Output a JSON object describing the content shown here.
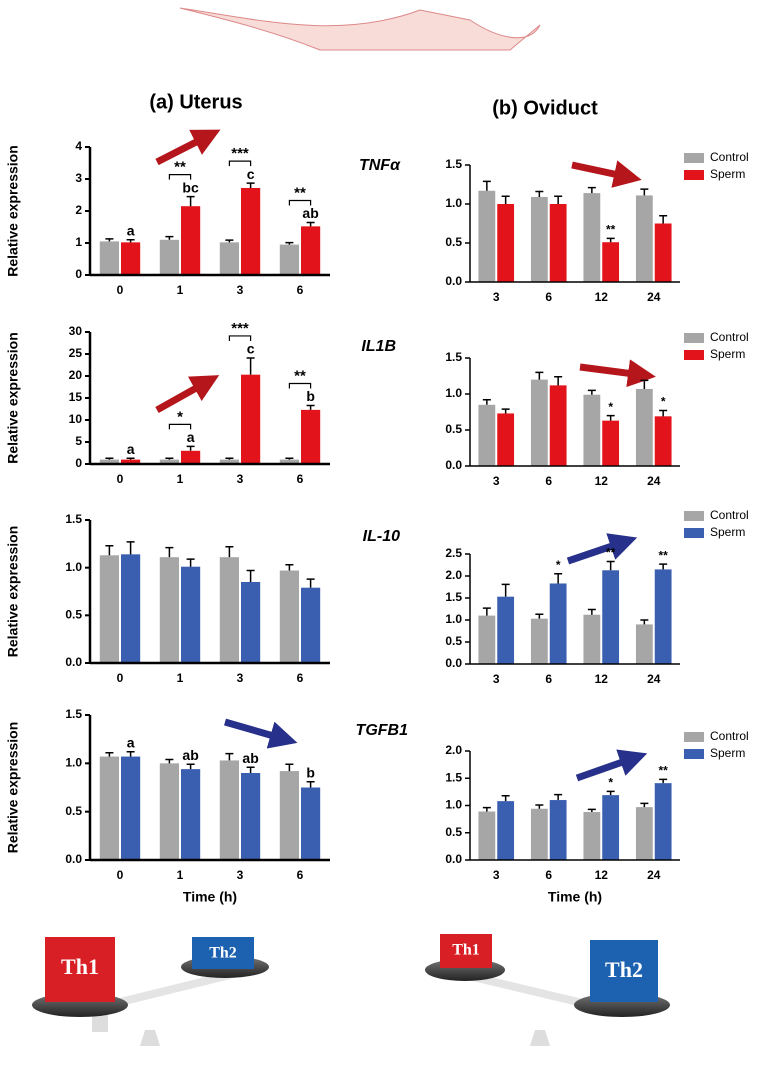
{
  "headings": [
    "(a) Uterus",
    "(b) Oviduct"
  ],
  "genes": [
    "TNFα",
    "IL1B",
    "IL-10",
    "TGFB1"
  ],
  "balance": {
    "left": [
      "Th1",
      "Th2"
    ],
    "right": [
      "Th1",
      "Th2"
    ]
  },
  "chart_data": [
    {
      "type": "bar",
      "ylabel": "Relative expression",
      "categories": [
        "0",
        "1",
        "3",
        "6"
      ],
      "ylim": [
        0,
        4
      ],
      "yticks": [
        0,
        1,
        2,
        3,
        4
      ],
      "series": [
        {
          "color": "#a6a6a6",
          "values": [
            1.05,
            1.1,
            1.02,
            0.95
          ],
          "errors": [
            0.08,
            0.1,
            0.07,
            0.06
          ]
        },
        {
          "color": "#e3131b",
          "values": [
            1.02,
            2.15,
            2.72,
            1.52
          ],
          "errors": [
            0.08,
            0.3,
            0.15,
            0.12
          ],
          "labels": [
            "a",
            "bc",
            "c",
            "ab"
          ]
        }
      ],
      "brackets": [
        null,
        "**",
        "***",
        "**"
      ]
    },
    {
      "type": "bar",
      "categories": [
        "3",
        "6",
        "12",
        "24"
      ],
      "ylim": [
        0,
        1.5
      ],
      "yticks": [
        {
          "value": 0,
          "label": "0.0"
        },
        0.5,
        {
          "value": 1,
          "label": "1.0"
        },
        1.5
      ],
      "series": [
        {
          "name": "Control",
          "color": "#a6a6a6",
          "values": [
            1.17,
            1.09,
            1.14,
            1.11
          ],
          "errors": [
            0.12,
            0.07,
            0.07,
            0.08
          ]
        },
        {
          "name": "Sperm",
          "color": "#e3131b",
          "values": [
            1.0,
            1.0,
            0.51,
            0.75
          ],
          "errors": [
            0.1,
            0.1,
            0.05,
            0.1
          ],
          "labels": [
            null,
            null,
            "**",
            null
          ]
        }
      ]
    },
    {
      "type": "bar",
      "ylabel": "Relative expression",
      "categories": [
        "0",
        "1",
        "3",
        "6"
      ],
      "ylim": [
        0,
        30
      ],
      "yticks": [
        0,
        5,
        10,
        15,
        20,
        25,
        30
      ],
      "series": [
        {
          "color": "#a6a6a6",
          "values": [
            1,
            1,
            1,
            1
          ],
          "errors": [
            0.3,
            0.3,
            0.3,
            0.3
          ]
        },
        {
          "color": "#e3131b",
          "values": [
            1,
            3,
            20.3,
            12.3
          ],
          "errors": [
            0.3,
            1,
            3.8,
            1
          ],
          "labels": [
            "a",
            "a",
            "c",
            "b"
          ]
        }
      ],
      "brackets": [
        null,
        "*",
        "***",
        "**"
      ]
    },
    {
      "type": "bar",
      "categories": [
        "3",
        "6",
        "12",
        "24"
      ],
      "ylim": [
        0,
        1.5
      ],
      "yticks": [
        {
          "value": 0,
          "label": "0.0"
        },
        0.5,
        {
          "value": 1,
          "label": "1.0"
        },
        1.5
      ],
      "series": [
        {
          "name": "Control",
          "color": "#a6a6a6",
          "values": [
            0.85,
            1.2,
            0.99,
            1.07
          ],
          "errors": [
            0.07,
            0.1,
            0.06,
            0.12
          ]
        },
        {
          "name": "Sperm",
          "color": "#e3131b",
          "values": [
            0.73,
            1.12,
            0.63,
            0.69
          ],
          "errors": [
            0.06,
            0.12,
            0.07,
            0.08
          ],
          "labels": [
            null,
            null,
            "*",
            "*"
          ]
        }
      ]
    },
    {
      "type": "bar",
      "ylabel": "Relative expression",
      "categories": [
        "0",
        "1",
        "3",
        "6"
      ],
      "ylim": [
        0,
        1.5
      ],
      "yticks": [
        {
          "value": 0,
          "label": "0.0"
        },
        0.5,
        {
          "value": 1,
          "label": "1.0"
        },
        1.5
      ],
      "series": [
        {
          "color": "#a6a6a6",
          "values": [
            1.13,
            1.11,
            1.11,
            0.97
          ],
          "errors": [
            0.1,
            0.1,
            0.11,
            0.06
          ]
        },
        {
          "color": "#3a5fb0",
          "values": [
            1.14,
            1.01,
            0.85,
            0.79
          ],
          "errors": [
            0.13,
            0.08,
            0.12,
            0.09
          ]
        }
      ]
    },
    {
      "type": "bar",
      "categories": [
        "3",
        "6",
        "12",
        "24"
      ],
      "ylim": [
        0,
        2.5
      ],
      "yticks": [
        {
          "value": 0,
          "label": "0.0"
        },
        0.5,
        {
          "value": 1,
          "label": "1.0"
        },
        1.5,
        {
          "value": 2,
          "label": "2.0"
        },
        2.5
      ],
      "series": [
        {
          "name": "Control",
          "color": "#a6a6a6",
          "values": [
            1.1,
            1.03,
            1.12,
            0.9
          ],
          "errors": [
            0.17,
            0.1,
            0.12,
            0.1
          ]
        },
        {
          "name": "Sperm",
          "color": "#3a5fb0",
          "values": [
            1.53,
            1.83,
            2.13,
            2.15
          ],
          "errors": [
            0.28,
            0.22,
            0.2,
            0.12
          ],
          "labels": [
            null,
            "*",
            "**",
            "**"
          ]
        }
      ]
    },
    {
      "type": "bar",
      "ylabel": "Relative expression",
      "xlabel": "Time (h)",
      "categories": [
        "0",
        "1",
        "3",
        "6"
      ],
      "ylim": [
        0,
        1.5
      ],
      "yticks": [
        {
          "value": 0,
          "label": "0.0"
        },
        0.5,
        {
          "value": 1,
          "label": "1.0"
        },
        1.5
      ],
      "series": [
        {
          "color": "#a6a6a6",
          "values": [
            1.07,
            1.0,
            1.03,
            0.92
          ],
          "errors": [
            0.04,
            0.04,
            0.07,
            0.07
          ]
        },
        {
          "color": "#3a5fb0",
          "values": [
            1.07,
            0.94,
            0.9,
            0.75
          ],
          "errors": [
            0.05,
            0.05,
            0.06,
            0.06
          ],
          "labels": [
            "a",
            "ab",
            "ab",
            "b"
          ]
        }
      ]
    },
    {
      "type": "bar",
      "xlabel": "Time (h)",
      "categories": [
        "3",
        "6",
        "12",
        "24"
      ],
      "ylim": [
        0,
        2.0
      ],
      "yticks": [
        {
          "value": 0,
          "label": "0.0"
        },
        0.5,
        {
          "value": 1,
          "label": "1.0"
        },
        1.5,
        {
          "value": 2,
          "label": "2.0"
        }
      ],
      "series": [
        {
          "name": "Control",
          "color": "#a6a6a6",
          "values": [
            0.89,
            0.94,
            0.88,
            0.97
          ],
          "errors": [
            0.07,
            0.07,
            0.05,
            0.07
          ]
        },
        {
          "name": "Sperm",
          "color": "#3a5fb0",
          "values": [
            1.08,
            1.1,
            1.19,
            1.41
          ],
          "errors": [
            0.1,
            0.1,
            0.07,
            0.07
          ],
          "labels": [
            null,
            null,
            "*",
            "**"
          ]
        }
      ]
    }
  ]
}
